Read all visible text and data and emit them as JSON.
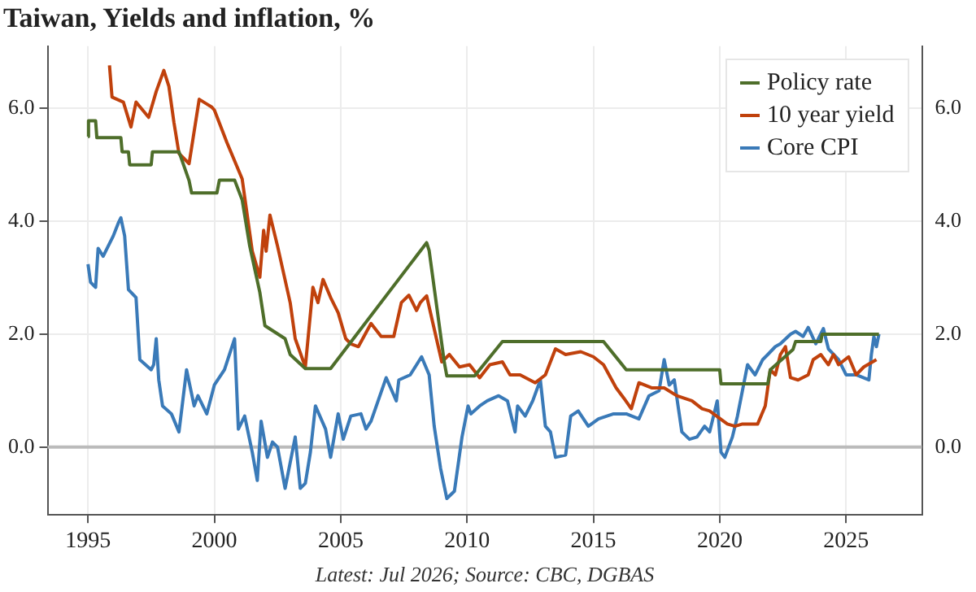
{
  "chart_data": {
    "type": "line",
    "title": "Taiwan, Yields and inflation, %",
    "annotations": [
      "Latest: Jul 2026; Source: CBC, DGBAS"
    ],
    "xlim": [
      1993.4,
      2028
    ],
    "xticks": [
      1995,
      2000,
      2005,
      2010,
      2015,
      2020,
      2025
    ],
    "ylim": [
      -1.2,
      7.1
    ],
    "yticks": [
      {
        "value": 0,
        "label": "0.0"
      },
      {
        "value": 2,
        "label": "2.0"
      },
      {
        "value": 4,
        "label": "4.0"
      },
      {
        "value": 6,
        "label": "6.0"
      }
    ],
    "y2lim": [
      -1.2,
      7.1
    ],
    "y2ticks": [
      {
        "value": 0,
        "label": "0.0"
      },
      {
        "value": 2,
        "label": "2.0"
      },
      {
        "value": 4,
        "label": "4.0"
      },
      {
        "value": 6,
        "label": "6.0"
      }
    ],
    "grid": true,
    "legend": "top right",
    "marker": "none",
    "line_style": "solid",
    "ref_lines": [
      {
        "axis": "y",
        "value": 0,
        "color": "#bbbbbb"
      }
    ],
    "series": [
      {
        "name": "Policy rate",
        "color": "#4e6e2a",
        "x": [
          1995.0,
          1995.02,
          1995.3,
          1995.35,
          1996.3,
          1996.35,
          1996.6,
          1996.65,
          1997.5,
          1997.55,
          1998.6,
          1999.0,
          1999.1,
          2000.1,
          2000.2,
          2000.8,
          2001.1,
          2001.4,
          2001.8,
          2002.0,
          2002.8,
          2003.0,
          2003.6,
          2004.6,
          2008.4,
          2008.5,
          2009.1,
          2009.2,
          2010.3,
          2011.4,
          2015.4,
          2016.3,
          2020.0,
          2020.05,
          2021.9,
          2022.0,
          2022.9,
          2023.0,
          2024.0,
          2024.05,
          2026.3
        ],
        "values": [
          5.5,
          5.78,
          5.78,
          5.48,
          5.48,
          5.23,
          5.23,
          5.0,
          5.0,
          5.23,
          5.23,
          4.72,
          4.5,
          4.5,
          4.73,
          4.73,
          4.38,
          3.56,
          2.74,
          2.15,
          1.92,
          1.64,
          1.39,
          1.39,
          3.62,
          3.48,
          1.5,
          1.26,
          1.26,
          1.87,
          1.87,
          1.37,
          1.37,
          1.12,
          1.12,
          1.37,
          1.73,
          1.87,
          1.87,
          2.0,
          2.0
        ]
      },
      {
        "name": "10 year yield",
        "color": "#c0410c",
        "x": [
          1995.85,
          1995.95,
          1996.4,
          1996.7,
          1996.9,
          1997.4,
          1997.7,
          1998.0,
          1998.2,
          1998.4,
          1998.6,
          1999.0,
          1999.4,
          1999.9,
          2000.0,
          2000.5,
          2001.1,
          2001.5,
          2001.8,
          2001.95,
          2002.05,
          2002.2,
          2002.5,
          2003.0,
          2003.2,
          2003.6,
          2003.9,
          2004.1,
          2004.3,
          2004.6,
          2004.9,
          2005.2,
          2005.4,
          2005.7,
          2006.2,
          2006.6,
          2007.1,
          2007.4,
          2007.7,
          2008.0,
          2008.15,
          2008.4,
          2008.65,
          2009.0,
          2009.3,
          2009.7,
          2010.1,
          2010.5,
          2010.9,
          2011.4,
          2011.7,
          2012.1,
          2012.7,
          2013.1,
          2013.5,
          2013.9,
          2014.5,
          2015.0,
          2015.4,
          2015.9,
          2016.2,
          2016.5,
          2016.8,
          2017.3,
          2017.8,
          2018.3,
          2018.9,
          2019.3,
          2019.6,
          2020.3,
          2020.6,
          2020.9,
          2021.5,
          2021.8,
          2022.0,
          2022.2,
          2022.4,
          2022.6,
          2022.8,
          2023.1,
          2023.5,
          2023.7,
          2024.0,
          2024.3,
          2024.5,
          2024.7,
          2025.1,
          2025.4,
          2025.7,
          2026.2
        ],
        "values": [
          6.76,
          6.2,
          6.11,
          5.67,
          6.11,
          5.84,
          6.3,
          6.67,
          6.39,
          5.75,
          5.2,
          5.02,
          6.16,
          6.02,
          5.97,
          5.39,
          4.75,
          3.47,
          3.01,
          3.84,
          3.47,
          4.11,
          3.56,
          2.56,
          1.92,
          1.42,
          2.83,
          2.56,
          2.97,
          2.65,
          2.38,
          1.92,
          1.83,
          1.78,
          2.19,
          1.96,
          1.96,
          2.56,
          2.69,
          2.42,
          2.56,
          2.68,
          2.19,
          1.51,
          1.64,
          1.42,
          1.46,
          1.23,
          1.46,
          1.51,
          1.28,
          1.28,
          1.14,
          1.28,
          1.74,
          1.64,
          1.69,
          1.6,
          1.46,
          1.05,
          0.87,
          0.68,
          1.14,
          1.05,
          1.05,
          0.91,
          0.82,
          0.68,
          0.64,
          0.41,
          0.37,
          0.41,
          0.41,
          0.73,
          1.37,
          1.28,
          1.64,
          1.78,
          1.23,
          1.19,
          1.28,
          1.55,
          1.64,
          1.46,
          1.64,
          1.46,
          1.6,
          1.28,
          1.42,
          1.55
        ]
      },
      {
        "name": "Core CPI",
        "color": "#3a7ab8",
        "x": [
          1995.0,
          1995.1,
          1995.3,
          1995.4,
          1995.6,
          1996.0,
          1996.2,
          1996.3,
          1996.45,
          1996.6,
          1996.9,
          1997.05,
          1997.5,
          1997.6,
          1997.7,
          1997.8,
          1997.95,
          1998.3,
          1998.6,
          1998.9,
          1999.2,
          1999.35,
          1999.7,
          2000.0,
          2000.4,
          2000.8,
          2000.95,
          2001.2,
          2001.5,
          2001.7,
          2001.85,
          2002.1,
          2002.3,
          2002.5,
          2002.8,
          2003.2,
          2003.4,
          2003.6,
          2003.8,
          2004.0,
          2004.4,
          2004.6,
          2004.9,
          2005.1,
          2005.4,
          2005.8,
          2006.0,
          2006.2,
          2006.8,
          2007.2,
          2007.3,
          2007.75,
          2008.2,
          2008.5,
          2008.7,
          2008.95,
          2009.2,
          2009.5,
          2009.8,
          2010.04,
          2010.15,
          2010.5,
          2010.8,
          2011.25,
          2011.6,
          2011.9,
          2012.0,
          2012.3,
          2012.6,
          2012.9,
          2013.1,
          2013.3,
          2013.5,
          2013.9,
          2014.1,
          2014.4,
          2014.8,
          2015.2,
          2015.8,
          2016.3,
          2016.8,
          2017.2,
          2017.6,
          2017.8,
          2018.0,
          2018.2,
          2018.5,
          2018.8,
          2019.1,
          2019.4,
          2019.6,
          2019.9,
          2020.05,
          2020.2,
          2020.5,
          2020.7,
          2021.1,
          2021.4,
          2021.7,
          2021.9,
          2022.2,
          2022.4,
          2022.8,
          2023.0,
          2023.3,
          2023.5,
          2023.8,
          2024.1,
          2024.3,
          2024.7,
          2025.0,
          2025.4,
          2025.9,
          2026.0,
          2026.1,
          2026.2,
          2026.3
        ],
        "values": [
          3.24,
          2.92,
          2.83,
          3.52,
          3.38,
          3.74,
          3.97,
          4.06,
          3.74,
          2.79,
          2.65,
          1.55,
          1.37,
          1.46,
          1.92,
          1.19,
          0.73,
          0.59,
          0.27,
          1.37,
          0.73,
          0.91,
          0.59,
          1.1,
          1.37,
          1.92,
          0.32,
          0.55,
          -0.09,
          -0.59,
          0.46,
          -0.18,
          0.09,
          0.0,
          -0.73,
          0.18,
          -0.73,
          -0.64,
          -0.09,
          0.73,
          0.32,
          -0.18,
          0.59,
          0.14,
          0.55,
          0.59,
          0.32,
          0.46,
          1.23,
          0.82,
          1.19,
          1.28,
          1.6,
          1.28,
          0.37,
          -0.37,
          -0.91,
          -0.78,
          0.18,
          0.73,
          0.59,
          0.73,
          0.82,
          0.91,
          0.82,
          0.27,
          0.73,
          0.55,
          0.82,
          1.19,
          0.37,
          0.27,
          -0.18,
          -0.14,
          0.55,
          0.64,
          0.37,
          0.5,
          0.59,
          0.59,
          0.5,
          0.91,
          1.0,
          1.55,
          1.1,
          1.19,
          0.27,
          0.14,
          0.18,
          0.37,
          0.27,
          0.82,
          -0.09,
          -0.18,
          0.18,
          0.55,
          1.46,
          1.28,
          1.55,
          1.64,
          1.78,
          1.83,
          2.0,
          2.05,
          1.96,
          2.12,
          1.83,
          2.1,
          1.74,
          1.55,
          1.28,
          1.28,
          1.19,
          1.64,
          1.96,
          1.78,
          2.0
        ]
      }
    ]
  }
}
